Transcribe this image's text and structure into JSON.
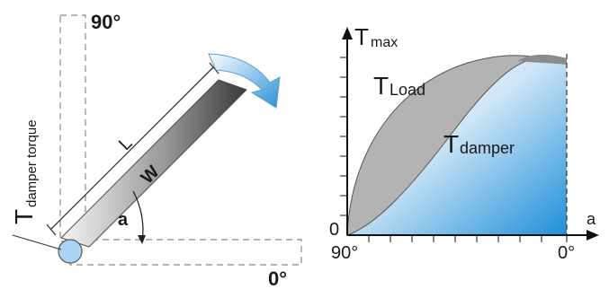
{
  "left_diagram": {
    "angle_90_label": "90°",
    "angle_0_label": "0°",
    "length_label": "L",
    "weight_label": "W",
    "angle_label": "a",
    "torque_label_main": "T",
    "torque_label_sub": "damper torque"
  },
  "right_chart": {
    "y_axis_main": "T",
    "y_axis_sub": "max",
    "x_axis_label": "a",
    "origin_label": "0",
    "x_start_label": "90°",
    "x_end_label": "0°",
    "load_label_main": "T",
    "load_label_sub": "Load",
    "damper_label_main": "T",
    "damper_label_sub": "damper"
  },
  "colors": {
    "blade_light": "#f2f2f2",
    "blade_dark": "#333333",
    "arrow_blue": "#2a8fd6",
    "damper_fill_start": "#ffffff",
    "damper_fill_end": "#1f8fd9",
    "load_fill": "#b3b3b3",
    "pivot": "#a9d4f2"
  }
}
